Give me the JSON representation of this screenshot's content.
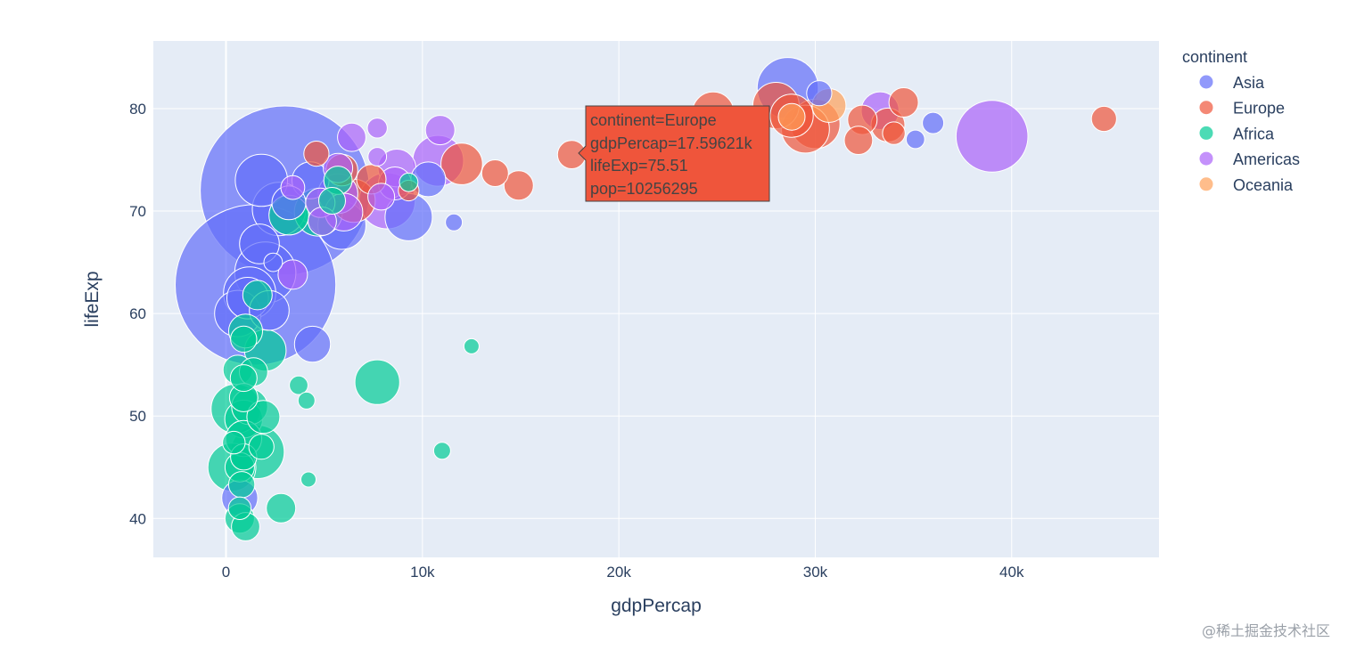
{
  "chart_data": {
    "type": "scatter",
    "subtype": "bubble",
    "title": "",
    "xlabel": "gdpPercap",
    "ylabel": "lifeExp",
    "xlim": [
      -3700,
      47500
    ],
    "ylim": [
      36.2,
      86.6
    ],
    "xticks": [
      0,
      10000,
      20000,
      30000,
      40000
    ],
    "xtick_labels": [
      "0",
      "10k",
      "20k",
      "30k",
      "40k"
    ],
    "yticks": [
      40,
      50,
      60,
      70,
      80
    ],
    "ytick_labels": [
      "40",
      "50",
      "60",
      "70",
      "80"
    ],
    "grid": true,
    "legend": {
      "title": "continent",
      "position": "top-right",
      "entries": [
        {
          "name": "Asia",
          "color": "#636efa"
        },
        {
          "name": "Europe",
          "color": "#ef553b"
        },
        {
          "name": "Africa",
          "color": "#00cc96"
        },
        {
          "name": "Americas",
          "color": "#ab63fa"
        },
        {
          "name": "Oceania",
          "color": "#ffa15a"
        }
      ]
    },
    "size_field": "pop",
    "series": [
      {
        "name": "Asia",
        "color": "#636efa",
        "points": [
          {
            "x": 3000,
            "y": 72.0,
            "s": 1000
          },
          {
            "x": 1500,
            "y": 62.8,
            "s": 900
          },
          {
            "x": 28600,
            "y": 82.0,
            "s": 130
          },
          {
            "x": 1800,
            "y": 73.0,
            "s": 95
          },
          {
            "x": 2700,
            "y": 70.2,
            "s": 100
          },
          {
            "x": 2000,
            "y": 64.0,
            "s": 130
          },
          {
            "x": 1200,
            "y": 62.0,
            "s": 95
          },
          {
            "x": 9300,
            "y": 69.4,
            "s": 78
          },
          {
            "x": 5900,
            "y": 68.6,
            "s": 80
          },
          {
            "x": 600,
            "y": 60.0,
            "s": 75
          },
          {
            "x": 1700,
            "y": 66.8,
            "s": 55
          },
          {
            "x": 2200,
            "y": 60.3,
            "s": 55
          },
          {
            "x": 4300,
            "y": 73.0,
            "s": 48
          },
          {
            "x": 1100,
            "y": 61.5,
            "s": 60
          },
          {
            "x": 10300,
            "y": 73.1,
            "s": 42
          },
          {
            "x": 4400,
            "y": 57.0,
            "s": 45
          },
          {
            "x": 700,
            "y": 42.0,
            "s": 45
          },
          {
            "x": 3200,
            "y": 70.8,
            "s": 40
          },
          {
            "x": 30200,
            "y": 81.5,
            "s": 22
          },
          {
            "x": 36000,
            "y": 78.6,
            "s": 16
          },
          {
            "x": 35100,
            "y": 77.0,
            "s": 12
          },
          {
            "x": 11600,
            "y": 68.9,
            "s": 10
          },
          {
            "x": 2400,
            "y": 65.0,
            "s": 12
          }
        ]
      },
      {
        "name": "Europe",
        "color": "#ef553b",
        "points": [
          {
            "x": 30000,
            "y": 78.5,
            "s": 85
          },
          {
            "x": 29500,
            "y": 78.0,
            "s": 80
          },
          {
            "x": 28000,
            "y": 80.3,
            "s": 75
          },
          {
            "x": 28800,
            "y": 79.3,
            "s": 65
          },
          {
            "x": 24800,
            "y": 79.6,
            "s": 60
          },
          {
            "x": 12000,
            "y": 74.6,
            "s": 60
          },
          {
            "x": 6500,
            "y": 71.0,
            "s": 65
          },
          {
            "x": 5900,
            "y": 74.0,
            "s": 35
          },
          {
            "x": 33700,
            "y": 78.4,
            "s": 40
          },
          {
            "x": 34500,
            "y": 80.6,
            "s": 30
          },
          {
            "x": 32200,
            "y": 76.9,
            "s": 28
          },
          {
            "x": 32400,
            "y": 78.9,
            "s": 30
          },
          {
            "x": 14900,
            "y": 72.5,
            "s": 30
          },
          {
            "x": 13700,
            "y": 73.7,
            "s": 25
          },
          {
            "x": 17596,
            "y": 75.51,
            "s": 28
          },
          {
            "x": 44700,
            "y": 79.0,
            "s": 22
          },
          {
            "x": 7400,
            "y": 73.1,
            "s": 30
          },
          {
            "x": 34000,
            "y": 77.6,
            "s": 18
          },
          {
            "x": 4600,
            "y": 75.6,
            "s": 22
          },
          {
            "x": 9300,
            "y": 72.0,
            "s": 15
          }
        ]
      },
      {
        "name": "Africa",
        "color": "#00cc96",
        "points": [
          {
            "x": 1600,
            "y": 46.5,
            "s": 100
          },
          {
            "x": 500,
            "y": 50.7,
            "s": 85
          },
          {
            "x": 300,
            "y": 45.0,
            "s": 80
          },
          {
            "x": 4700,
            "y": 69.9,
            "s": 80
          },
          {
            "x": 7700,
            "y": 53.3,
            "s": 70
          },
          {
            "x": 2000,
            "y": 56.4,
            "s": 60
          },
          {
            "x": 3200,
            "y": 69.6,
            "s": 55
          },
          {
            "x": 900,
            "y": 49.7,
            "s": 50
          },
          {
            "x": 1200,
            "y": 50.9,
            "s": 45
          },
          {
            "x": 900,
            "y": 47.8,
            "s": 45
          },
          {
            "x": 1000,
            "y": 58.3,
            "s": 40
          },
          {
            "x": 1900,
            "y": 49.9,
            "s": 38
          },
          {
            "x": 700,
            "y": 45.0,
            "s": 30
          },
          {
            "x": 1600,
            "y": 61.8,
            "s": 30
          },
          {
            "x": 600,
            "y": 54.5,
            "s": 30
          },
          {
            "x": 1400,
            "y": 54.3,
            "s": 28
          },
          {
            "x": 2800,
            "y": 41.0,
            "s": 30
          },
          {
            "x": 700,
            "y": 40.0,
            "s": 30
          },
          {
            "x": 1000,
            "y": 39.2,
            "s": 28
          },
          {
            "x": 900,
            "y": 51.8,
            "s": 28
          },
          {
            "x": 900,
            "y": 53.7,
            "s": 25
          },
          {
            "x": 900,
            "y": 46.0,
            "s": 24
          },
          {
            "x": 800,
            "y": 43.3,
            "s": 24
          },
          {
            "x": 900,
            "y": 57.5,
            "s": 24
          },
          {
            "x": 5700,
            "y": 73.0,
            "s": 28
          },
          {
            "x": 5400,
            "y": 71.0,
            "s": 25
          },
          {
            "x": 1800,
            "y": 47.0,
            "s": 22
          },
          {
            "x": 3700,
            "y": 53.0,
            "s": 12
          },
          {
            "x": 4100,
            "y": 51.5,
            "s": 10
          },
          {
            "x": 11000,
            "y": 46.6,
            "s": 10
          },
          {
            "x": 12500,
            "y": 56.8,
            "s": 8
          },
          {
            "x": 9300,
            "y": 72.8,
            "s": 12
          },
          {
            "x": 4200,
            "y": 43.8,
            "s": 8
          },
          {
            "x": 700,
            "y": 41.0,
            "s": 18
          },
          {
            "x": 400,
            "y": 47.4,
            "s": 18
          }
        ]
      },
      {
        "name": "Americas",
        "color": "#ab63fa",
        "points": [
          {
            "x": 39000,
            "y": 77.3,
            "s": 180
          },
          {
            "x": 8200,
            "y": 71.0,
            "s": 110
          },
          {
            "x": 10800,
            "y": 74.9,
            "s": 90
          },
          {
            "x": 6000,
            "y": 69.9,
            "s": 50
          },
          {
            "x": 5700,
            "y": 71.7,
            "s": 55
          },
          {
            "x": 8700,
            "y": 74.2,
            "s": 50
          },
          {
            "x": 33300,
            "y": 79.8,
            "s": 50
          },
          {
            "x": 8600,
            "y": 72.7,
            "s": 38
          },
          {
            "x": 4800,
            "y": 70.8,
            "s": 30
          },
          {
            "x": 5700,
            "y": 74.2,
            "s": 30
          },
          {
            "x": 10900,
            "y": 77.9,
            "s": 30
          },
          {
            "x": 6400,
            "y": 77.2,
            "s": 28
          },
          {
            "x": 3400,
            "y": 63.8,
            "s": 30
          },
          {
            "x": 4900,
            "y": 69.0,
            "s": 28
          },
          {
            "x": 7900,
            "y": 71.4,
            "s": 25
          },
          {
            "x": 3400,
            "y": 72.3,
            "s": 20
          },
          {
            "x": 7700,
            "y": 78.1,
            "s": 14
          },
          {
            "x": 7700,
            "y": 75.3,
            "s": 12
          }
        ]
      },
      {
        "name": "Oceania",
        "color": "#ffa15a",
        "points": [
          {
            "x": 30700,
            "y": 80.3,
            "s": 40
          },
          {
            "x": 28800,
            "y": 79.2,
            "s": 25
          }
        ]
      }
    ],
    "hover_label": {
      "continent": "continent=Europe",
      "gdp": "gdpPercap=17.59621k",
      "life": "lifeExp=75.51",
      "pop": "pop=10256295",
      "color": "#ef553b"
    },
    "watermark": "@稀土掘金技术社区"
  }
}
